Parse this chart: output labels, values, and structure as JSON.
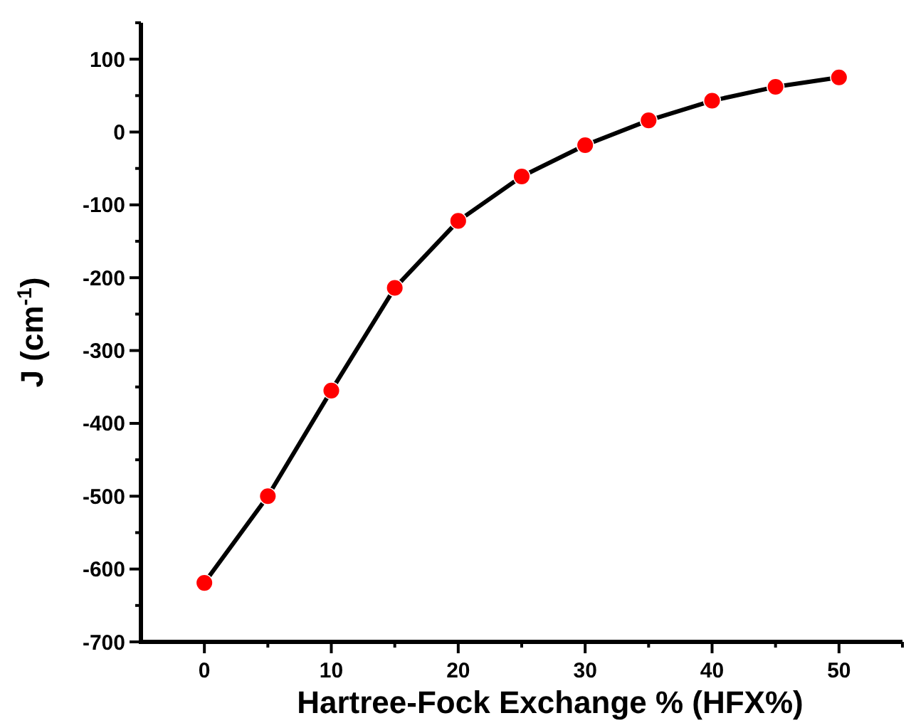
{
  "chart_data": {
    "type": "line",
    "xlabel": "Hartree-Fock Exchange % (HFX%)",
    "ylabel": "J (cm$^{-1}$)",
    "x": [
      0,
      5,
      10,
      15,
      20,
      25,
      30,
      35,
      40,
      45,
      50
    ],
    "series": [
      {
        "color": "#000000",
        "colors": [
          "#ff0000",
          "#ff0000",
          "#ff0000",
          "#ff0000",
          "#ff0000",
          "#ff0000",
          "#ff0000",
          "#ff0000",
          "#ff0000",
          "#ff0000",
          "#ff0000"
        ],
        "values": [
          -619,
          -500,
          -355,
          -214,
          -122,
          -61,
          -18,
          16,
          43,
          62,
          75
        ]
      }
    ],
    "marker": "circle",
    "line_style": "solid",
    "grid": false,
    "xlim": [
      -5,
      55
    ],
    "ylim": [
      -700,
      150
    ],
    "xticks": [
      0,
      {
        "value": 5,
        "label": null
      },
      10,
      {
        "value": 15,
        "label": null
      },
      20,
      {
        "value": 25,
        "label": null
      },
      30,
      {
        "value": 35,
        "label": null
      },
      40,
      {
        "value": 45,
        "label": null
      },
      50,
      {
        "value": 55,
        "label": null
      }
    ],
    "yticks": [
      -700,
      {
        "value": -650,
        "label": null
      },
      -600,
      {
        "value": -550,
        "label": null
      },
      -500,
      {
        "value": -450,
        "label": null
      },
      -400,
      {
        "value": -350,
        "label": null
      },
      -300,
      {
        "value": -250,
        "label": null
      },
      -200,
      {
        "value": -150,
        "label": null
      },
      -100,
      {
        "value": -50,
        "label": null
      },
      0,
      {
        "value": 50,
        "label": null
      },
      100,
      {
        "value": 150,
        "label": null
      }
    ]
  }
}
